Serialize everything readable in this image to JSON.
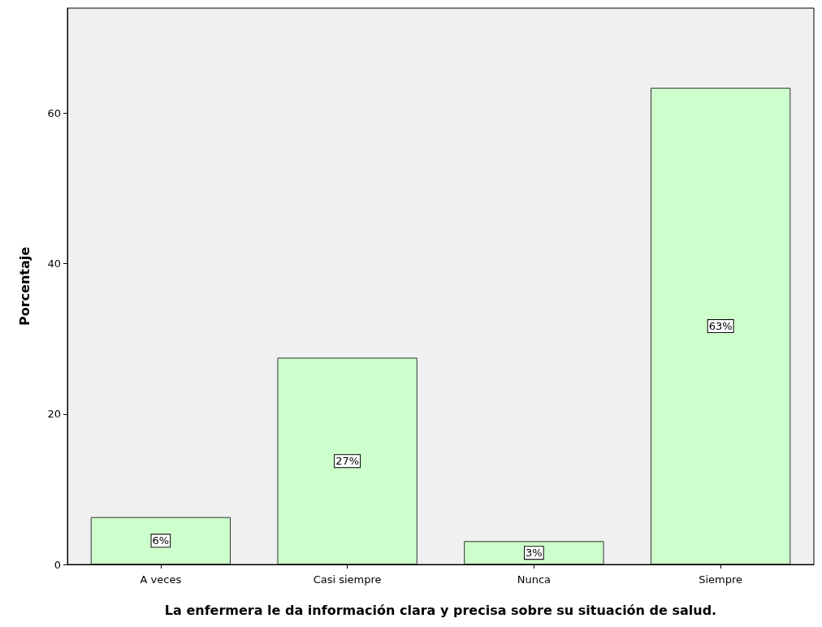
{
  "chart_data": {
    "type": "bar",
    "categories": [
      "A veces",
      "Casi siempre",
      "Nunca",
      "Siempre"
    ],
    "values": [
      6.3,
      27.5,
      3.1,
      63.4
    ],
    "value_labels": [
      "6%",
      "27%",
      "3%",
      "63%"
    ],
    "color": "#ccffcc",
    "xlabel": "La enfermera le da información clara y precisa sobre su situación de salud.",
    "ylabel": "Porcentaje",
    "ylim": [
      0,
      74
    ],
    "yticks": [
      0,
      20,
      40,
      60
    ],
    "grid": false
  }
}
